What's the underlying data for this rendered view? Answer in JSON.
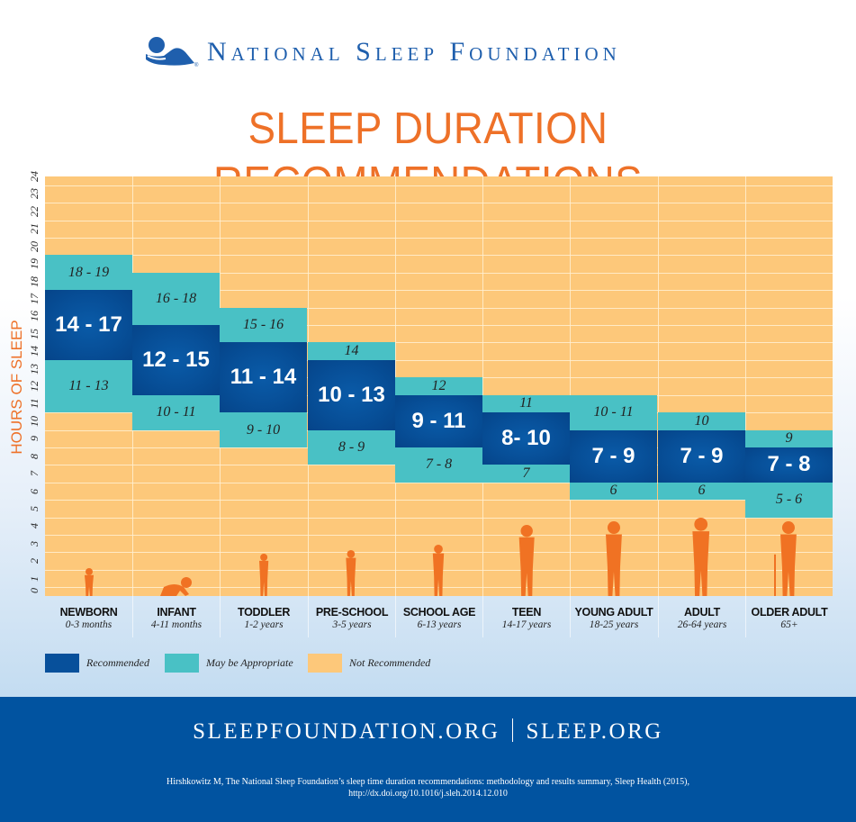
{
  "header": {
    "org_name": "National Sleep Foundation",
    "logo_icon": "sleeping-person-logo-icon"
  },
  "title": "SLEEP DURATION RECOMMENDATIONS",
  "colors": {
    "recommended": "#07509b",
    "may_be_appropriate": "#49c1c5",
    "not_recommended": "#fdc87a",
    "accent_orange": "#ee7128",
    "brand_blue": "#0153a0"
  },
  "chart_data": {
    "type": "bar",
    "subtype": "floating-range",
    "title": "SLEEP DURATION RECOMMENDATIONS",
    "xlabel": "",
    "ylabel": "HOURS OF SLEEP",
    "ylim": [
      0,
      24
    ],
    "yticks": [
      0,
      1,
      2,
      3,
      4,
      5,
      6,
      7,
      8,
      9,
      10,
      11,
      12,
      13,
      14,
      15,
      16,
      17,
      18,
      19,
      20,
      21,
      22,
      23,
      24
    ],
    "grid": true,
    "legend_position": "bottom-left",
    "legend": [
      "Recommended",
      "May be Appropriate",
      "Not Recommended"
    ],
    "categories": [
      "NEWBORN",
      "INFANT",
      "TODDLER",
      "PRE-SCHOOL",
      "SCHOOL AGE",
      "TEEN",
      "YOUNG ADULT",
      "ADULT",
      "OLDER ADULT"
    ],
    "age_ranges": [
      "0-3 months",
      "4-11 months",
      "1-2 years",
      "3-5 years",
      "6-13 years",
      "14-17 years",
      "18-25 years",
      "26-64 years",
      "65+"
    ],
    "series": [
      {
        "name": "May be Appropriate (upper)",
        "labels": [
          "18 - 19",
          "16 - 18",
          "15 - 16",
          "14",
          "12",
          "11",
          "10 - 11",
          "10",
          "9"
        ],
        "ranges": [
          [
            18,
            19
          ],
          [
            16,
            18
          ],
          [
            15,
            16
          ],
          [
            14,
            14
          ],
          [
            12,
            12
          ],
          [
            11,
            11
          ],
          [
            10,
            11
          ],
          [
            10,
            10
          ],
          [
            9,
            9
          ]
        ]
      },
      {
        "name": "Recommended",
        "labels": [
          "14 - 17",
          "12 - 15",
          "11 - 14",
          "10 - 13",
          "9 - 11",
          "8- 10",
          "7 - 9",
          "7 - 9",
          "7 - 8"
        ],
        "ranges": [
          [
            14,
            17
          ],
          [
            12,
            15
          ],
          [
            11,
            14
          ],
          [
            10,
            13
          ],
          [
            9,
            11
          ],
          [
            8,
            10
          ],
          [
            7,
            9
          ],
          [
            7,
            9
          ],
          [
            7,
            8
          ]
        ]
      },
      {
        "name": "May be Appropriate (lower)",
        "labels": [
          "11 - 13",
          "10 - 11",
          "9 - 10",
          "8 - 9",
          "7 - 8",
          "7",
          "6",
          "6",
          "5 - 6"
        ],
        "ranges": [
          [
            11,
            13
          ],
          [
            10,
            11
          ],
          [
            9,
            10
          ],
          [
            8,
            9
          ],
          [
            7,
            8
          ],
          [
            7,
            7
          ],
          [
            6,
            6
          ],
          [
            6,
            6
          ],
          [
            5,
            6
          ]
        ]
      }
    ]
  },
  "categories": [
    {
      "name": "NEWBORN",
      "age": "0-3 months"
    },
    {
      "name": "INFANT",
      "age": "4-11 months"
    },
    {
      "name": "TODDLER",
      "age": "1-2 years"
    },
    {
      "name": "PRE-SCHOOL",
      "age": "3-5 years"
    },
    {
      "name": "SCHOOL AGE",
      "age": "6-13 years"
    },
    {
      "name": "TEEN",
      "age": "14-17 years"
    },
    {
      "name": "YOUNG ADULT",
      "age": "18-25 years"
    },
    {
      "name": "ADULT",
      "age": "26-64 years"
    },
    {
      "name": "OLDER ADULT",
      "age": "65+"
    }
  ],
  "legend": {
    "recommended": "Recommended",
    "may_be_appropriate": "May be Appropriate",
    "not_recommended": "Not Recommended"
  },
  "footer": {
    "site1": "SLEEPFOUNDATION.ORG",
    "site2": "SLEEP.ORG",
    "citation_line1": "Hirshkowitz M, The National Sleep Foundation’s sleep time duration recommendations: methodology and results summary, Sleep Health (2015),",
    "citation_line2": "http://dx.doi.org/10.1016/j.sleh.2014.12.010"
  }
}
